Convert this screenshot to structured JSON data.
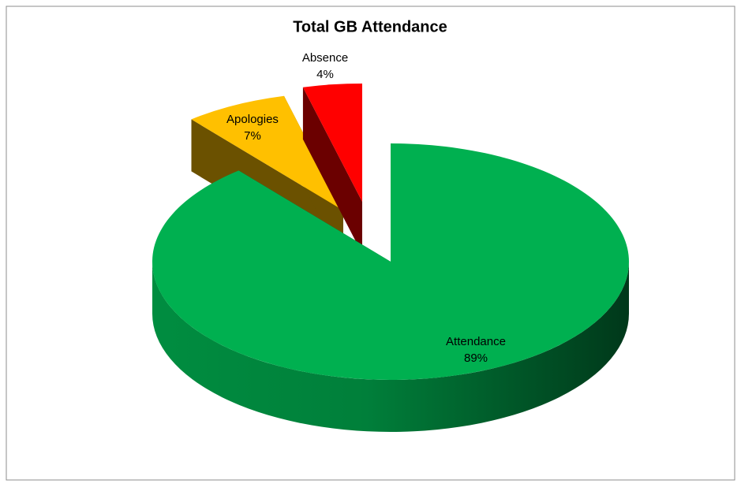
{
  "chart_data": {
    "type": "pie3d",
    "title": "Total GB Attendance",
    "categories": [
      "Attendance",
      "Apologies",
      "Absence"
    ],
    "values": [
      89,
      7,
      4
    ],
    "value_labels": [
      "89%",
      "7%",
      "4%"
    ],
    "colors": [
      "#00B050",
      "#FFC000",
      "#FF0000"
    ]
  }
}
